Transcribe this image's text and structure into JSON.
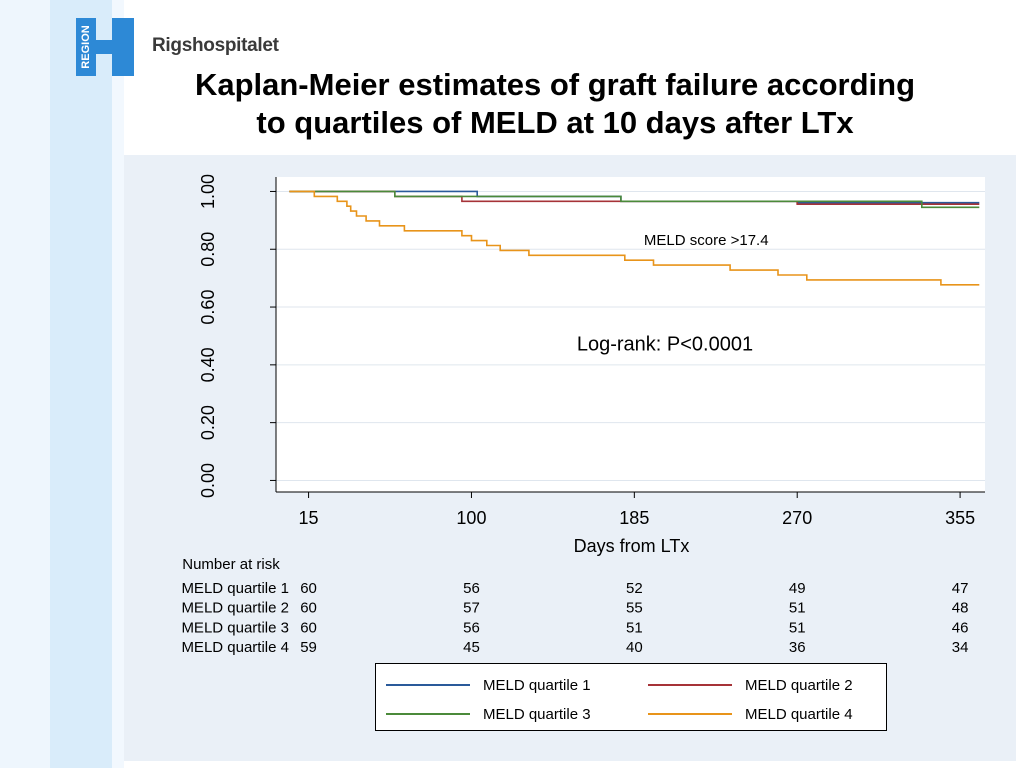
{
  "header": {
    "logo_text": "REGION",
    "brand": "Rigshospitalet",
    "title_line1": "Kaplan-Meier estimates of graft failure according",
    "title_line2": "to quartiles of MELD at 10 days after LTx"
  },
  "chart_data": {
    "type": "line",
    "step": true,
    "title": "Kaplan-Meier estimates of graft failure according to quartiles of MELD at 10 days after LTx",
    "xlabel": "Days from LTx",
    "ylabel": "",
    "xlim": [
      -2,
      368
    ],
    "ylim": [
      -0.04,
      1.05
    ],
    "x_ticks": [
      15,
      100,
      185,
      270,
      355
    ],
    "y_ticks": [
      0.0,
      0.2,
      0.4,
      0.6,
      0.8,
      1.0
    ],
    "y_tick_labels": [
      "0.00",
      "0.20",
      "0.40",
      "0.60",
      "0.80",
      "1.00"
    ],
    "grid": true,
    "annotations": [
      {
        "text": "MELD score >17.4",
        "x": 190,
        "y": 0.815
      },
      {
        "text": "Log-rank: P<0.0001",
        "x": 155,
        "y": 0.45
      }
    ],
    "series": [
      {
        "name": "MELD quartile 1",
        "color": "#2a5a9a",
        "points": [
          [
            5,
            1.0
          ],
          [
            103,
            1.0
          ],
          [
            103,
            0.983
          ],
          [
            178,
            0.983
          ],
          [
            178,
            0.966
          ],
          [
            270,
            0.966
          ],
          [
            270,
            0.961
          ],
          [
            365,
            0.961
          ]
        ]
      },
      {
        "name": "MELD quartile 2",
        "color": "#a63338",
        "points": [
          [
            5,
            1.0
          ],
          [
            60,
            1.0
          ],
          [
            60,
            0.983
          ],
          [
            95,
            0.983
          ],
          [
            95,
            0.966
          ],
          [
            270,
            0.966
          ],
          [
            270,
            0.956
          ],
          [
            365,
            0.956
          ]
        ]
      },
      {
        "name": "MELD quartile 3",
        "color": "#4b8a3a",
        "points": [
          [
            5,
            1.0
          ],
          [
            60,
            1.0
          ],
          [
            60,
            0.983
          ],
          [
            178,
            0.983
          ],
          [
            178,
            0.966
          ],
          [
            335,
            0.966
          ],
          [
            335,
            0.945
          ],
          [
            365,
            0.945
          ]
        ]
      },
      {
        "name": "MELD quartile 4",
        "color": "#e8941a",
        "points": [
          [
            5,
            1.0
          ],
          [
            18,
            1.0
          ],
          [
            18,
            0.983
          ],
          [
            30,
            0.983
          ],
          [
            30,
            0.966
          ],
          [
            35,
            0.966
          ],
          [
            35,
            0.949
          ],
          [
            37,
            0.949
          ],
          [
            37,
            0.932
          ],
          [
            40,
            0.932
          ],
          [
            40,
            0.915
          ],
          [
            45,
            0.915
          ],
          [
            45,
            0.898
          ],
          [
            52,
            0.898
          ],
          [
            52,
            0.881
          ],
          [
            65,
            0.881
          ],
          [
            65,
            0.864
          ],
          [
            95,
            0.864
          ],
          [
            95,
            0.847
          ],
          [
            100,
            0.847
          ],
          [
            100,
            0.83
          ],
          [
            108,
            0.83
          ],
          [
            108,
            0.813
          ],
          [
            115,
            0.813
          ],
          [
            115,
            0.796
          ],
          [
            130,
            0.796
          ],
          [
            130,
            0.779
          ],
          [
            180,
            0.779
          ],
          [
            180,
            0.762
          ],
          [
            195,
            0.762
          ],
          [
            195,
            0.745
          ],
          [
            235,
            0.745
          ],
          [
            235,
            0.728
          ],
          [
            260,
            0.728
          ],
          [
            260,
            0.711
          ],
          [
            275,
            0.711
          ],
          [
            275,
            0.694
          ],
          [
            345,
            0.694
          ],
          [
            345,
            0.677
          ],
          [
            365,
            0.677
          ]
        ]
      }
    ]
  },
  "risk_table": {
    "title": "Number at risk",
    "rows": [
      {
        "label": "MELD quartile 1",
        "values": [
          "60",
          "56",
          "52",
          "49",
          "47"
        ]
      },
      {
        "label": "MELD quartile 2",
        "values": [
          "60",
          "57",
          "55",
          "51",
          "48"
        ]
      },
      {
        "label": "MELD quartile 3",
        "values": [
          "60",
          "56",
          "51",
          "51",
          "46"
        ]
      },
      {
        "label": "MELD quartile 4",
        "values": [
          "59",
          "45",
          "40",
          "36",
          "34"
        ]
      }
    ]
  },
  "legend": {
    "items": [
      {
        "label": "MELD quartile 1",
        "color": "#2a5a9a"
      },
      {
        "label": "MELD quartile 2",
        "color": "#a63338"
      },
      {
        "label": "MELD quartile 3",
        "color": "#4b8a3a"
      },
      {
        "label": "MELD quartile 4",
        "color": "#e8941a"
      }
    ]
  }
}
